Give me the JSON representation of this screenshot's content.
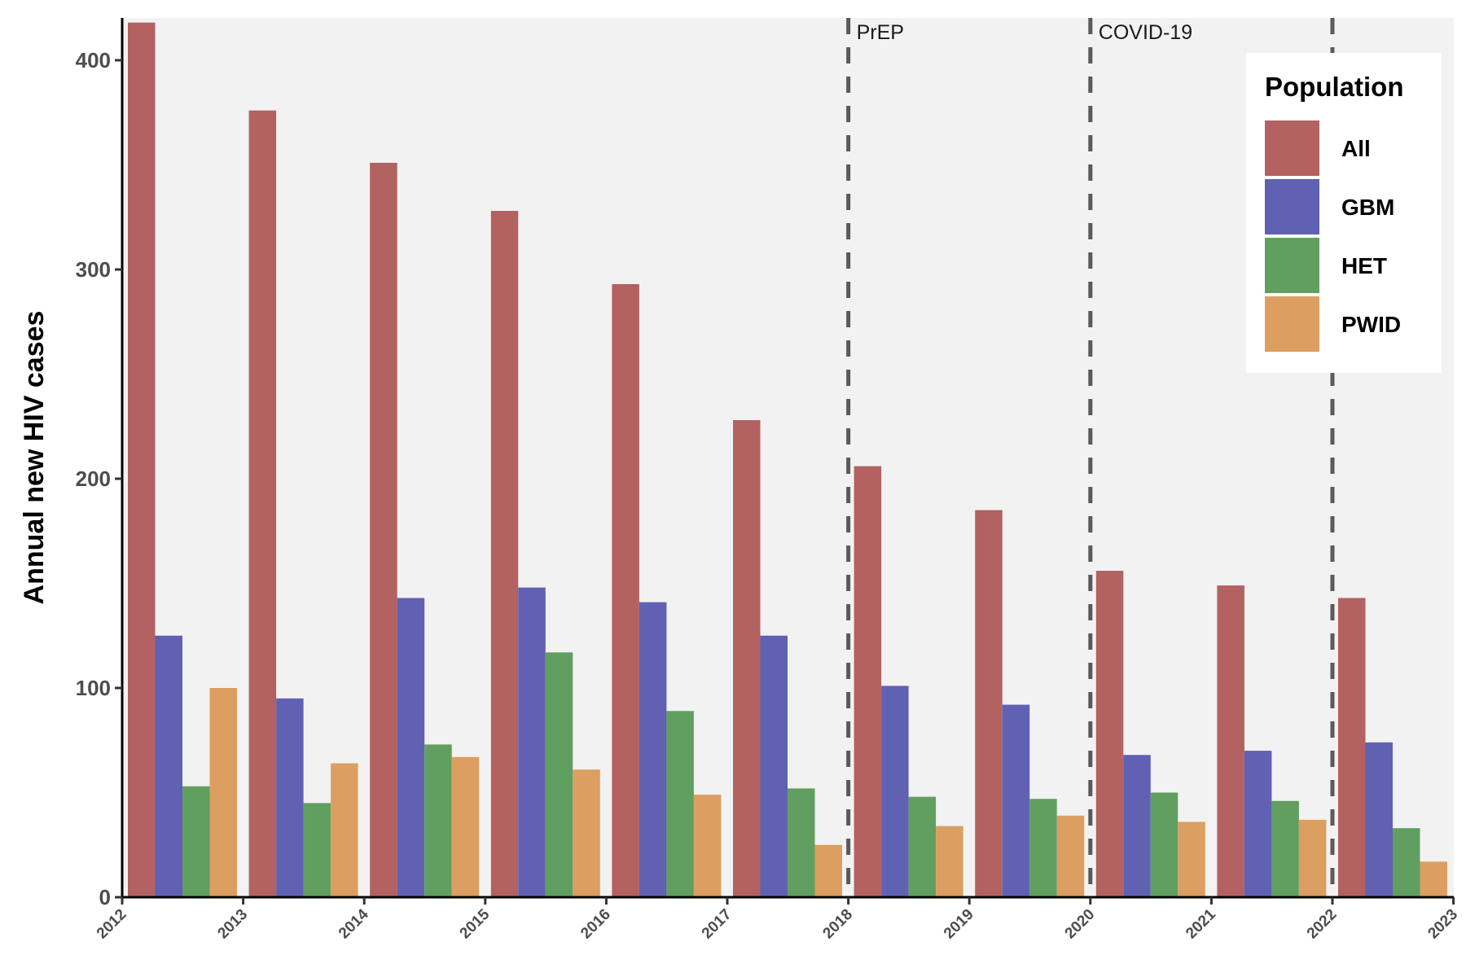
{
  "chart_data": {
    "type": "bar",
    "title": "",
    "xlabel": "",
    "ylabel": "Annual new HIV cases",
    "categories": [
      "2012",
      "2013",
      "2014",
      "2015",
      "2016",
      "2017",
      "2018",
      "2019",
      "2020",
      "2021",
      "2022"
    ],
    "x_tick_labels": [
      "2012",
      "2013",
      "2014",
      "2015",
      "2016",
      "2017",
      "2018",
      "2019",
      "2020",
      "2021",
      "2022",
      "2023"
    ],
    "y_ticks": [
      0,
      100,
      200,
      300,
      400
    ],
    "ylim": [
      0,
      420
    ],
    "series": [
      {
        "name": "All",
        "color": "#b36161",
        "values": [
          418,
          376,
          351,
          328,
          293,
          228,
          206,
          185,
          156,
          149,
          143
        ]
      },
      {
        "name": "GBM",
        "color": "#6061b3",
        "values": [
          125,
          95,
          143,
          148,
          141,
          125,
          101,
          92,
          68,
          70,
          74
        ]
      },
      {
        "name": "HET",
        "color": "#619f61",
        "values": [
          53,
          45,
          73,
          117,
          89,
          52,
          48,
          47,
          50,
          46,
          33
        ]
      },
      {
        "name": "PWID",
        "color": "#dc9f61",
        "values": [
          100,
          64,
          67,
          61,
          49,
          25,
          34,
          39,
          36,
          37,
          17
        ]
      }
    ],
    "annotations": [
      {
        "label": "PrEP",
        "x": 2018
      },
      {
        "label": "COVID-19",
        "x": 2020
      },
      {
        "label": "",
        "x": 2022
      }
    ],
    "legend": {
      "title": "Population",
      "position": "top-right"
    },
    "grid": false,
    "panel_background": "#f2f2f2"
  }
}
